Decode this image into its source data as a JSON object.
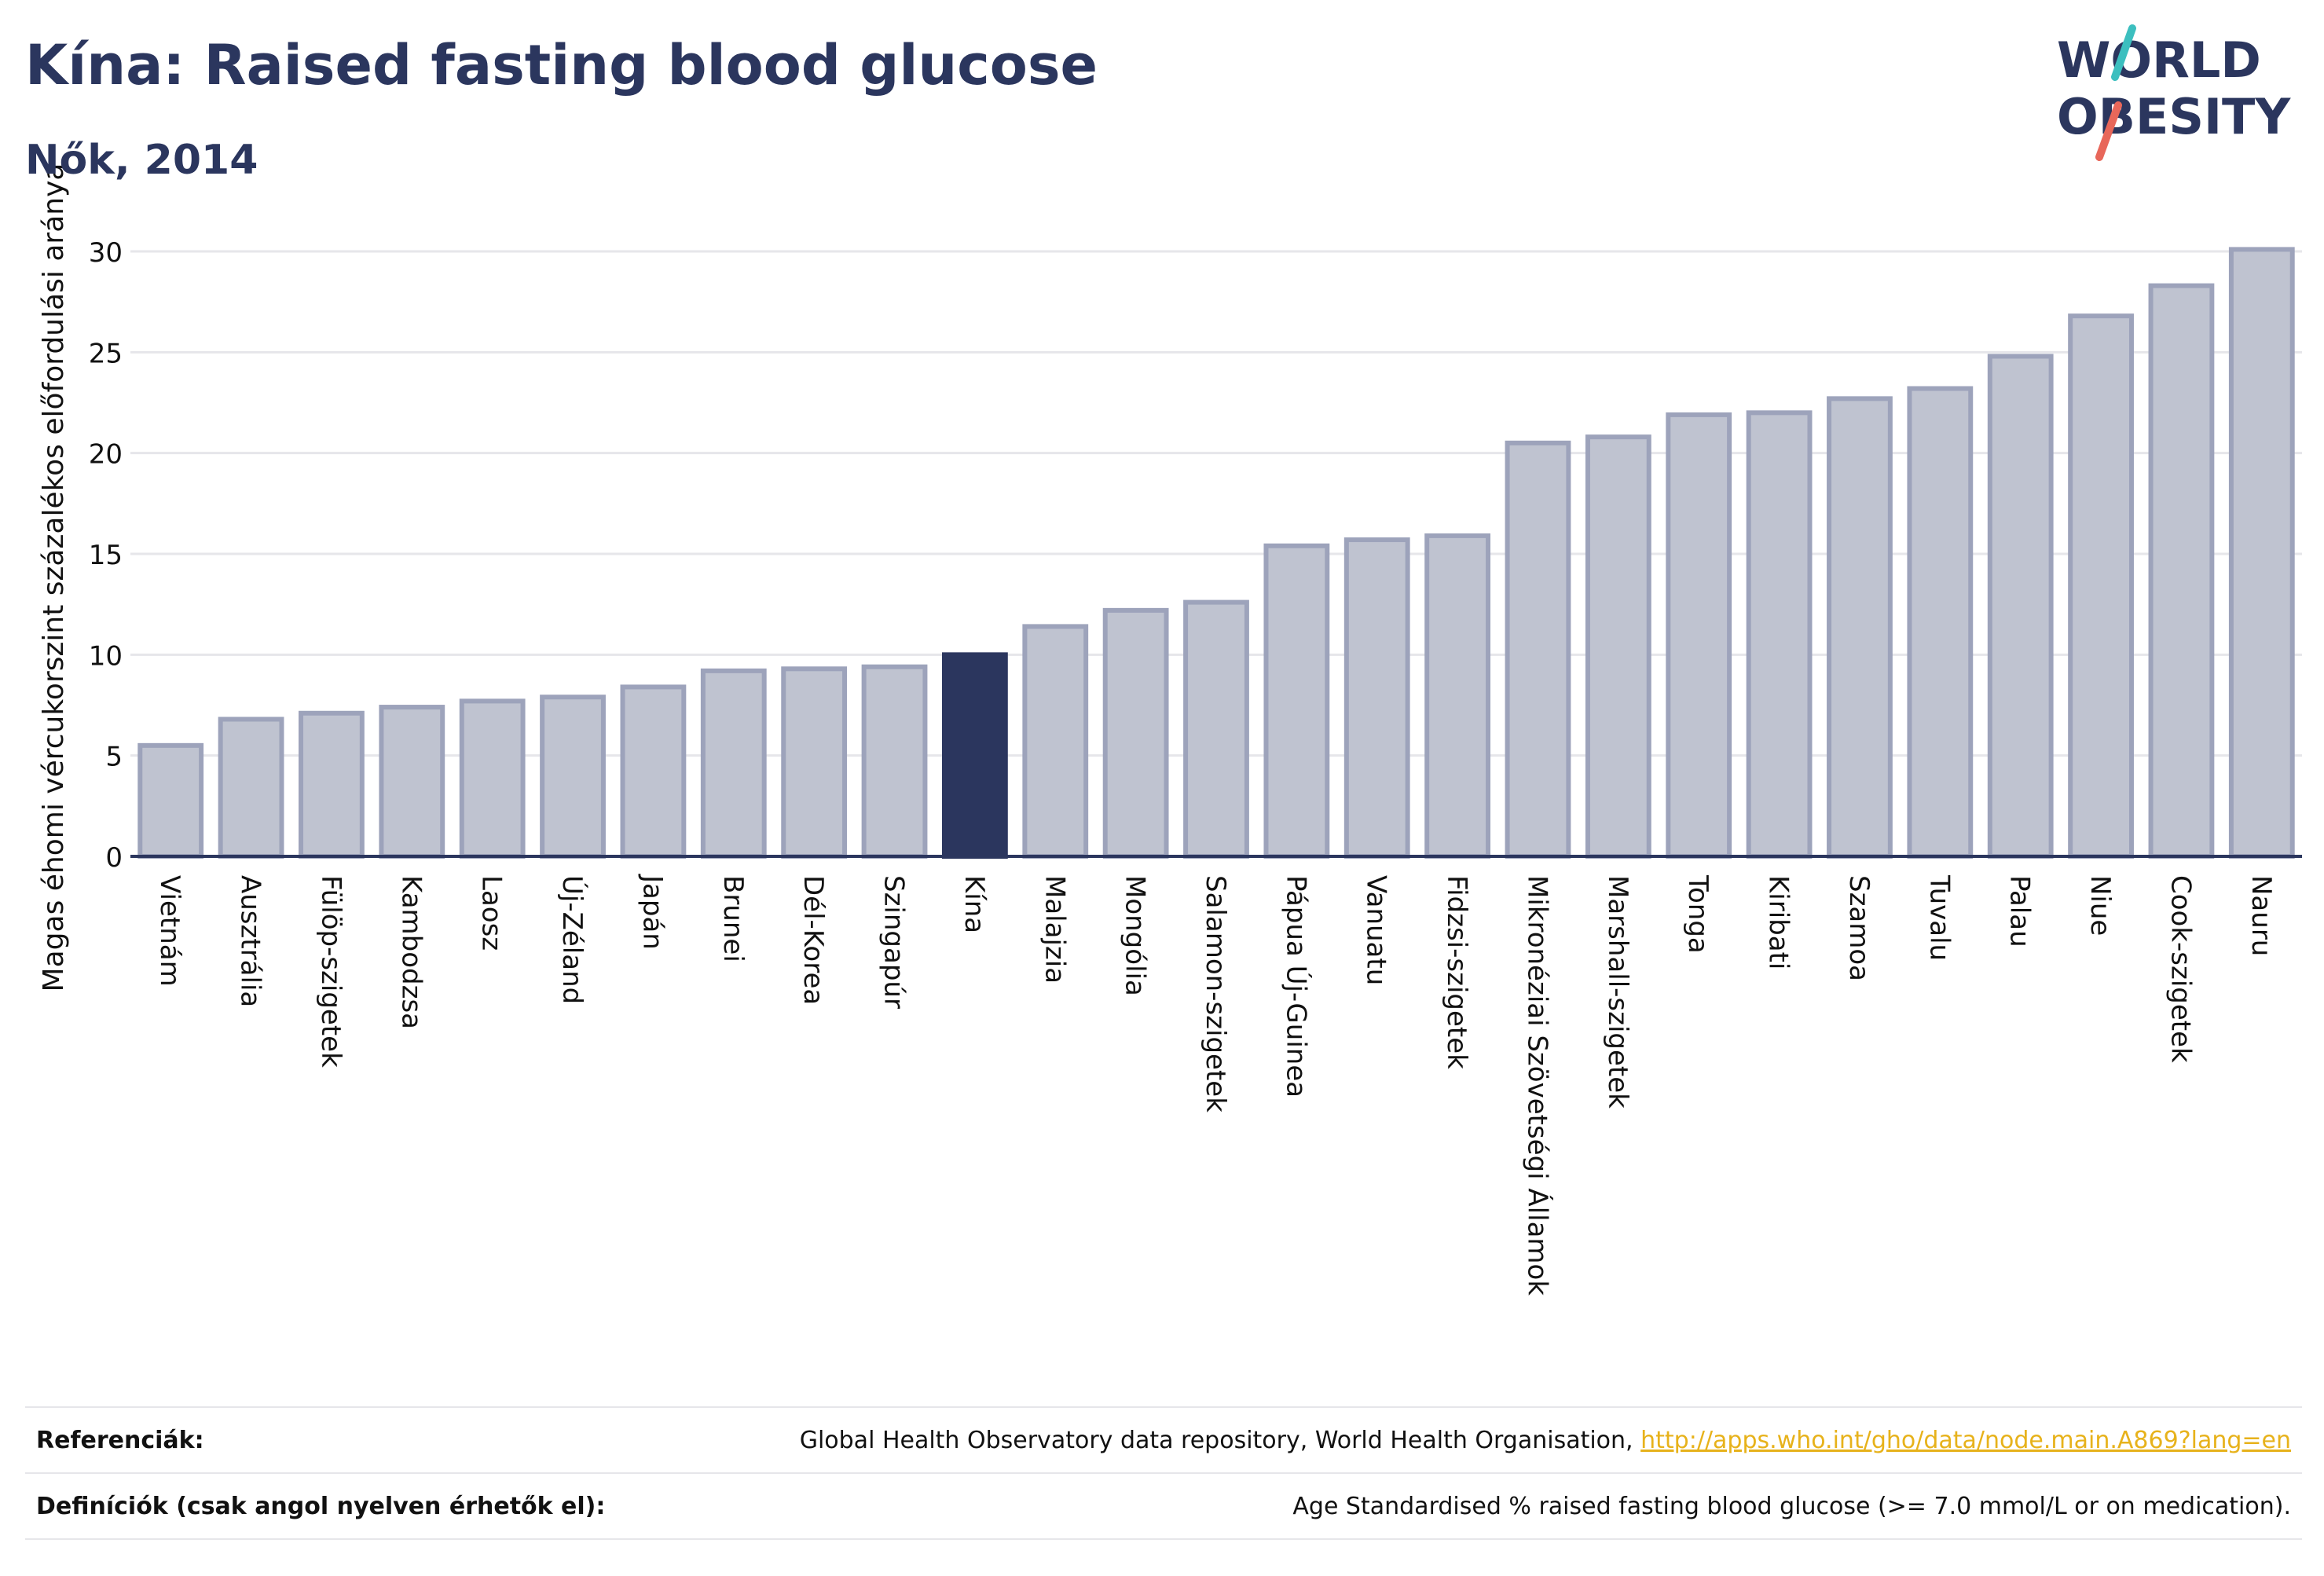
{
  "header": {
    "title": "Kína: Raised fasting blood glucose",
    "subtitle": "Nők, 2014"
  },
  "logo": {
    "line1": "WORLD",
    "line2": "OBESITY",
    "text_color": "#2b365e",
    "slash_colors": [
      "#3cbfbf",
      "#e8675a"
    ]
  },
  "colors": {
    "bar_fill": "#bfc3d0",
    "bar_stroke": "#9da3bb",
    "highlight": "#2b365e",
    "grid": "#e6e6ea",
    "axis": "#2b365e",
    "text": "#111111",
    "link": "#e7b21b"
  },
  "chart_data": {
    "type": "bar",
    "title": "Kína: Raised fasting blood glucose",
    "subtitle": "Nők, 2014",
    "xlabel": "",
    "ylabel": "Magas éhomi vércukorszint százalékos előfordulási aránya",
    "ylim": [
      0,
      31
    ],
    "yticks": [
      0,
      5,
      10,
      15,
      20,
      25,
      30
    ],
    "grid": true,
    "highlight": "Kína",
    "categories": [
      "Vietnám",
      "Ausztrália",
      "Fülöp-szigetek",
      "Kambodzsa",
      "Laosz",
      "Új-Zéland",
      "Japán",
      "Brunei",
      "Dél-Korea",
      "Szingapúr",
      "Kína",
      "Malajzia",
      "Mongólia",
      "Salamon-szigetek",
      "Pápua Új-Guinea",
      "Vanuatu",
      "Fidzsi-szigetek",
      "Mikronéziai Szövetségi Államok",
      "Marshall-szigetek",
      "Tonga",
      "Kiribati",
      "Szamoa",
      "Tuvalu",
      "Palau",
      "Niue",
      "Cook-szigetek",
      "Nauru"
    ],
    "values": [
      5.5,
      6.8,
      7.1,
      7.4,
      7.7,
      7.9,
      8.4,
      9.2,
      9.3,
      9.4,
      10.0,
      11.4,
      12.2,
      12.6,
      15.4,
      15.7,
      15.9,
      20.5,
      20.8,
      21.9,
      22.0,
      22.7,
      23.2,
      24.8,
      26.8,
      28.3,
      30.1
    ]
  },
  "footer": {
    "references_label": "Referenciák:",
    "references_text": "Global Health Observatory data repository, World Health Organisation,",
    "references_link": "http://apps.who.int/gho/data/node.main.A869?lang=en",
    "definitions_label": "Definíciók (csak angol nyelven érhetők el):",
    "definitions_text": "Age Standardised % raised fasting blood glucose (>= 7.0 mmol/L or on medication)."
  }
}
